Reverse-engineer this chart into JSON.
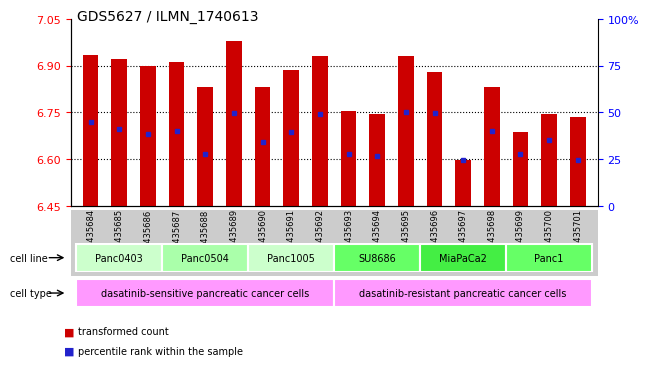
{
  "title": "GDS5627 / ILMN_1740613",
  "samples": [
    "GSM1435684",
    "GSM1435685",
    "GSM1435686",
    "GSM1435687",
    "GSM1435688",
    "GSM1435689",
    "GSM1435690",
    "GSM1435691",
    "GSM1435692",
    "GSM1435693",
    "GSM1435694",
    "GSM1435695",
    "GSM1435696",
    "GSM1435697",
    "GSM1435698",
    "GSM1435699",
    "GSM1435700",
    "GSM1435701"
  ],
  "bar_values": [
    6.935,
    6.92,
    6.9,
    6.91,
    6.83,
    6.98,
    6.83,
    6.885,
    6.93,
    6.755,
    6.745,
    6.93,
    6.88,
    6.598,
    6.83,
    6.685,
    6.745,
    6.735
  ],
  "blue_dot_values": [
    6.72,
    6.695,
    6.68,
    6.69,
    6.615,
    6.747,
    6.655,
    6.685,
    6.745,
    6.615,
    6.61,
    6.75,
    6.748,
    6.597,
    6.69,
    6.615,
    6.66,
    6.597
  ],
  "ylim_left": [
    6.45,
    7.05
  ],
  "ylim_right": [
    0,
    100
  ],
  "yticks_left": [
    6.45,
    6.6,
    6.75,
    6.9,
    7.05
  ],
  "yticks_right": [
    0,
    25,
    50,
    75,
    100
  ],
  "bar_color": "#cc0000",
  "dot_color": "#2222cc",
  "bar_bottom": 6.45,
  "cell_lines": [
    {
      "name": "Panc0403",
      "start": 0,
      "end": 3,
      "color": "#ccffcc"
    },
    {
      "name": "Panc0504",
      "start": 3,
      "end": 6,
      "color": "#aaffaa"
    },
    {
      "name": "Panc1005",
      "start": 6,
      "end": 9,
      "color": "#ccffcc"
    },
    {
      "name": "SU8686",
      "start": 9,
      "end": 12,
      "color": "#66ff66"
    },
    {
      "name": "MiaPaCa2",
      "start": 12,
      "end": 15,
      "color": "#44ee44"
    },
    {
      "name": "Panc1",
      "start": 15,
      "end": 18,
      "color": "#66ff66"
    }
  ],
  "cell_types": [
    {
      "name": "dasatinib-sensitive pancreatic cancer cells",
      "start": 0,
      "end": 9
    },
    {
      "name": "dasatinib-resistant pancreatic cancer cells",
      "start": 9,
      "end": 18
    }
  ],
  "cell_type_color": "#ff99ff",
  "sample_bg_color": "#cccccc",
  "bar_width": 0.55,
  "title_fontsize": 10,
  "axis_fontsize": 8,
  "label_fontsize": 7,
  "sample_fontsize": 6
}
